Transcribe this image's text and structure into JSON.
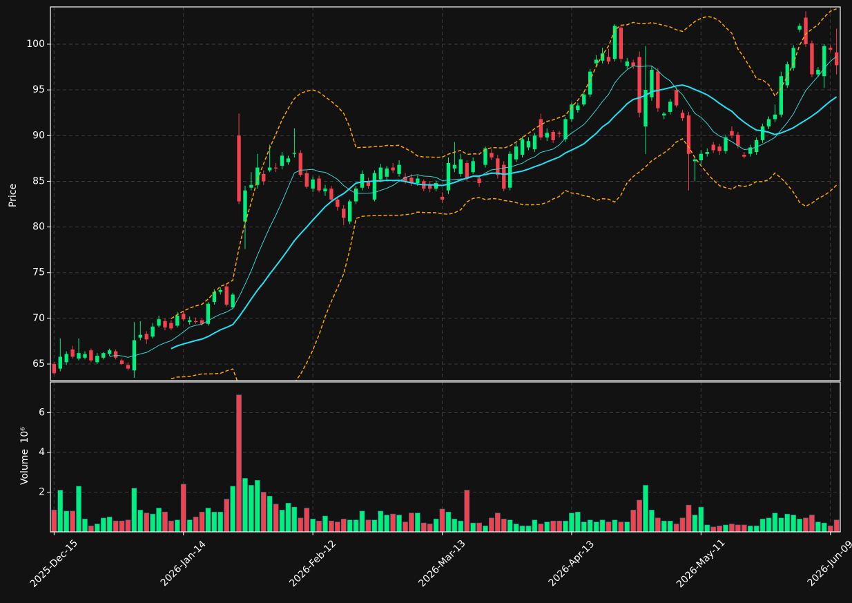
{
  "chart_data": {
    "type": "candlestick",
    "ylabel": "Price",
    "volume_label": "Volume",
    "volume_exponent": "10⁶",
    "up_color": "#00f07e",
    "down_color": "#f2414f",
    "background": "#121212",
    "grid": true,
    "xlim": [
      -0.6,
      127.6
    ],
    "xticks": [
      {
        "value": 0,
        "label": "2025-Dec-15"
      },
      {
        "value": 21,
        "label": "2026-Jan-14"
      },
      {
        "value": 42,
        "label": "2026-Feb-12"
      },
      {
        "value": 63,
        "label": "2026-Mar-13"
      },
      {
        "value": 84,
        "label": "2026-Apr-13"
      },
      {
        "value": 105,
        "label": "2026-May-11"
      },
      {
        "value": 126,
        "label": "2026-Jun-09"
      }
    ],
    "ylim": [
      63.19,
      104.08
    ],
    "yticks": [
      65,
      70,
      75,
      80,
      85,
      90,
      95,
      100
    ],
    "volume_ylim": [
      0,
      7.55
    ],
    "volume_yticks": [
      2,
      4,
      6
    ],
    "moving_averages": [
      {
        "window": 10,
        "color": "#3ad6d0",
        "width": 1
      },
      {
        "window": 20,
        "color": "#1fe3f5",
        "width": 2
      }
    ],
    "bollinger": {
      "window": 20,
      "std": 2,
      "color": "#ffa500"
    },
    "open": [
      65.0,
      64.5,
      65.2,
      66.6,
      65.6,
      65.7,
      66.5,
      65.2,
      65.7,
      66.1,
      66.4,
      65.4,
      64.9,
      64.3,
      67.9,
      68.3,
      68.0,
      69.2,
      69.7,
      69.5,
      69.2,
      70.5,
      69.6,
      69.7,
      69.8,
      69.4,
      71.8,
      72.9,
      73.5,
      71.2,
      90.0,
      80.6,
      84.3,
      84.6,
      85.8,
      86.2,
      86.5,
      86.7,
      87.1,
      88.0,
      88.1,
      85.9,
      84.2,
      85.3,
      83.9,
      84.2,
      83.0,
      82.0,
      80.6,
      82.8,
      84.3,
      85.0,
      83.0,
      85.2,
      85.5,
      86.5,
      85.8,
      85.5,
      85.4,
      84.8,
      85.0,
      84.6,
      84.2,
      83.3,
      84.0,
      86.4,
      85.8,
      87.0,
      86.0,
      85.3,
      86.8,
      88.1,
      87.5,
      86.8,
      84.3,
      87.4,
      87.9,
      88.7,
      88.5,
      91.8,
      89.8,
      90.4,
      90.3,
      89.6,
      91.8,
      92.8,
      93.4,
      94.5,
      97.9,
      98.2,
      98.6,
      98.4,
      101.8,
      97.6,
      98.0,
      98.6,
      91.0,
      94.2,
      97.0,
      92.2,
      92.6,
      95.0,
      92.5,
      92.2,
      87.2,
      87.3,
      88.0,
      89.0,
      88.8,
      88.3,
      90.5,
      90.1,
      87.9,
      88.0,
      88.2,
      89.5,
      91.0,
      91.8,
      92.3,
      95.5,
      97.4,
      101.6,
      102.9,
      100.1,
      96.7,
      96.5,
      99.6,
      99.1
    ],
    "high": [
      65.2,
      67.8,
      66.4,
      67.0,
      67.8,
      66.4,
      66.7,
      66.2,
      66.3,
      66.7,
      66.6,
      65.6,
      65.2,
      69.6,
      69.7,
      68.6,
      69.5,
      70.3,
      70.0,
      69.8,
      70.7,
      70.8,
      70.2,
      70.1,
      70.0,
      71.8,
      73.2,
      73.4,
      73.8,
      72.8,
      92.4,
      84.5,
      86.0,
      88.0,
      86.2,
      89.0,
      87.0,
      88.2,
      87.8,
      90.8,
      88.4,
      86.2,
      85.5,
      85.6,
      84.6,
      84.5,
      83.3,
      82.4,
      83.0,
      84.5,
      86.2,
      85.4,
      86.2,
      86.9,
      86.7,
      87.0,
      87.3,
      85.9,
      85.8,
      85.6,
      85.2,
      85.0,
      85.1,
      83.8,
      87.6,
      89.3,
      88.0,
      87.3,
      87.6,
      85.6,
      88.8,
      88.5,
      87.9,
      87.2,
      88.3,
      89.2,
      89.9,
      89.8,
      90.3,
      92.4,
      90.8,
      90.6,
      90.5,
      92.0,
      93.6,
      93.6,
      94.8,
      97.3,
      98.8,
      99.6,
      99.5,
      102.2,
      102.1,
      98.5,
      98.3,
      99.2,
      99.8,
      97.6,
      97.4,
      92.6,
      94.0,
      95.3,
      92.8,
      92.6,
      87.6,
      88.4,
      88.6,
      89.3,
      89.1,
      90.1,
      91.0,
      90.4,
      88.2,
      89.0,
      89.8,
      91.3,
      92.1,
      93.4,
      97.0,
      98.1,
      99.9,
      102.3,
      103.6,
      100.4,
      97.5,
      100.0,
      99.9,
      101.7
    ],
    "low": [
      63.9,
      64.2,
      64.9,
      65.6,
      65.4,
      65.5,
      65.2,
      65.0,
      65.5,
      65.9,
      65.5,
      64.9,
      64.3,
      63.5,
      67.6,
      67.2,
      67.8,
      69.0,
      68.7,
      68.7,
      69.0,
      69.7,
      69.3,
      69.4,
      69.2,
      69.2,
      71.5,
      72.6,
      71.3,
      71.0,
      82.5,
      77.6,
      84.0,
      84.2,
      84.6,
      86.0,
      86.0,
      86.3,
      86.8,
      87.6,
      85.5,
      84.2,
      83.8,
      83.8,
      83.4,
      82.8,
      81.8,
      80.2,
      80.3,
      82.5,
      84.0,
      84.2,
      82.8,
      84.9,
      85.2,
      85.9,
      85.5,
      84.7,
      84.5,
      84.5,
      83.9,
      83.8,
      83.9,
      82.6,
      83.6,
      86.0,
      85.5,
      85.0,
      85.8,
      84.4,
      86.5,
      87.3,
      85.3,
      83.9,
      84.0,
      87.1,
      87.6,
      88.4,
      88.2,
      89.5,
      89.4,
      89.2,
      89.8,
      89.3,
      91.5,
      92.5,
      93.2,
      94.2,
      97.5,
      97.9,
      97.8,
      98.1,
      98.0,
      97.3,
      97.3,
      92.0,
      88.0,
      93.8,
      92.6,
      91.8,
      92.3,
      93.1,
      91.6,
      84.0,
      85.0,
      86.9,
      87.7,
      88.1,
      87.9,
      88.0,
      89.7,
      88.6,
      87.5,
      87.7,
      87.9,
      89.2,
      90.7,
      91.5,
      92.0,
      95.2,
      97.1,
      101.3,
      99.7,
      96.4,
      96.4,
      95.2,
      99.2,
      96.7
    ],
    "close": [
      64.0,
      65.8,
      66.1,
      65.8,
      66.2,
      66.1,
      65.4,
      65.9,
      66.2,
      66.5,
      65.7,
      65.0,
      64.5,
      67.6,
      68.2,
      67.7,
      69.1,
      69.9,
      69.0,
      68.9,
      70.3,
      69.9,
      69.8,
      69.6,
      69.4,
      71.6,
      72.9,
      73.1,
      71.5,
      72.6,
      82.8,
      84.0,
      84.6,
      86.5,
      85.0,
      86.5,
      86.4,
      87.8,
      87.5,
      88.1,
      85.7,
      84.4,
      85.2,
      84.0,
      84.2,
      83.0,
      82.2,
      81.0,
      82.8,
      84.2,
      85.8,
      84.5,
      85.9,
      86.5,
      86.4,
      86.2,
      86.8,
      85.0,
      84.8,
      85.3,
      84.2,
      84.2,
      84.8,
      83.0,
      87.0,
      86.8,
      87.4,
      85.3,
      87.2,
      84.8,
      88.6,
      87.6,
      85.7,
      84.2,
      88.0,
      88.8,
      89.6,
      89.4,
      90.0,
      89.8,
      90.3,
      89.5,
      90.2,
      91.8,
      93.4,
      93.3,
      94.5,
      97.0,
      98.3,
      99.0,
      98.1,
      102.0,
      98.4,
      98.1,
      97.6,
      92.5,
      95.0,
      97.2,
      93.0,
      92.4,
      93.7,
      93.3,
      91.9,
      88.0,
      87.4,
      88.0,
      88.2,
      88.4,
      88.3,
      89.8,
      90.0,
      88.9,
      87.7,
      88.7,
      89.5,
      91.0,
      91.8,
      92.3,
      96.5,
      97.8,
      99.6,
      102.0,
      100.0,
      96.7,
      97.2,
      99.8,
      99.4,
      97.7
    ],
    "volume": [
      1.1,
      2.1,
      1.05,
      1.05,
      2.3,
      0.65,
      0.3,
      0.4,
      0.7,
      0.75,
      0.55,
      0.55,
      0.6,
      2.2,
      1.1,
      0.95,
      0.9,
      1.2,
      1.0,
      0.55,
      0.6,
      2.4,
      0.6,
      0.75,
      1.0,
      1.2,
      1.0,
      1.0,
      1.65,
      2.3,
      6.9,
      2.7,
      2.35,
      2.6,
      2.0,
      1.8,
      1.4,
      1.1,
      1.45,
      1.25,
      0.7,
      1.2,
      0.65,
      0.55,
      0.8,
      0.55,
      0.5,
      0.65,
      0.6,
      0.6,
      1.05,
      0.6,
      0.6,
      1.05,
      0.85,
      0.9,
      0.85,
      0.5,
      0.95,
      0.95,
      0.45,
      0.4,
      0.65,
      1.15,
      1.0,
      0.65,
      0.55,
      2.1,
      0.45,
      0.45,
      0.3,
      0.7,
      0.95,
      0.65,
      0.6,
      0.4,
      0.3,
      0.3,
      0.6,
      0.4,
      0.5,
      0.55,
      0.55,
      0.55,
      0.95,
      1.0,
      0.5,
      0.6,
      0.5,
      0.6,
      0.5,
      0.6,
      0.5,
      0.5,
      1.1,
      1.6,
      2.35,
      1.1,
      0.7,
      0.55,
      0.55,
      0.4,
      0.7,
      1.35,
      0.85,
      1.25,
      0.35,
      0.25,
      0.3,
      0.35,
      0.4,
      0.35,
      0.35,
      0.3,
      0.3,
      0.65,
      0.7,
      0.95,
      0.7,
      0.9,
      0.85,
      0.65,
      0.7,
      0.85,
      0.5,
      0.45,
      0.3,
      0.6
    ]
  }
}
